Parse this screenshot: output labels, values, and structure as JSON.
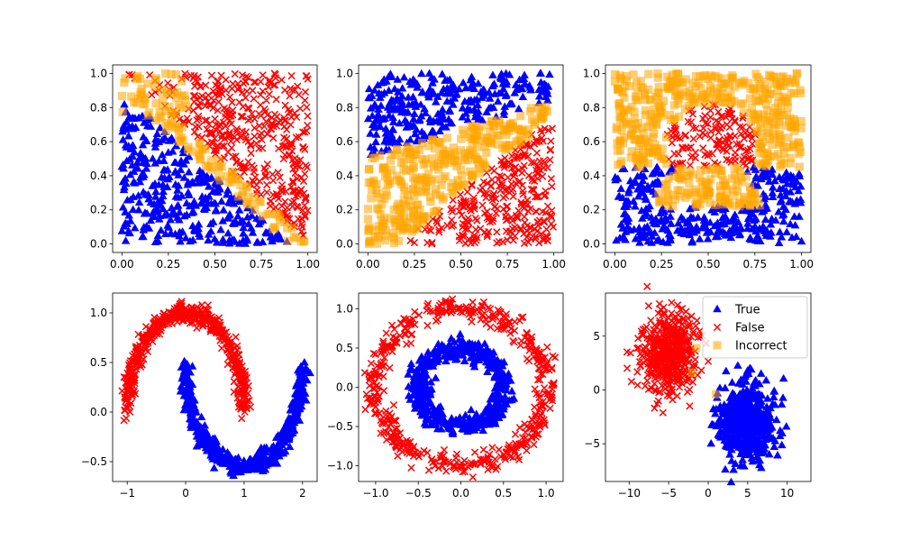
{
  "colors": {
    "true": "#0000ff",
    "false": "#ff0000",
    "incorrect": "#ffa500"
  },
  "legend": {
    "panel": 5,
    "placement": "upper-right",
    "entries": [
      {
        "label": "True",
        "marker": "triangle",
        "color": "#0000ff"
      },
      {
        "label": "False",
        "marker": "x",
        "color": "#ff0000"
      },
      {
        "label": "Incorrect",
        "marker": "square",
        "color": "#ffa500"
      }
    ]
  },
  "chart_data": [
    {
      "type": "scatter",
      "dataset": "diagonal split",
      "xlim": [
        -0.05,
        1.05
      ],
      "ylim": [
        -0.05,
        1.05
      ],
      "xticks": [
        0.0,
        0.25,
        0.5,
        0.75,
        1.0
      ],
      "xtick_labels": [
        "0.00",
        "0.25",
        "0.50",
        "0.75",
        "1.00"
      ],
      "yticks": [
        0.0,
        0.2,
        0.4,
        0.6,
        0.8,
        1.0
      ],
      "ytick_labels": [
        "0.0",
        "0.2",
        "0.4",
        "0.6",
        "0.8",
        "1.0"
      ],
      "series": [
        {
          "name": "True",
          "region": "x + y < 0.95, x in [0,1], y in [0,1]",
          "approx_count": 400
        },
        {
          "name": "False",
          "region": "x + y > 1.0, x in [0,1], y in [0,1]",
          "approx_count": 450
        },
        {
          "name": "Incorrect",
          "region": "band along x + y ≈ 0.9–1.0 plus corner near (0.05–0.35, 0.75–1.0)",
          "approx_count": 70
        }
      ]
    },
    {
      "type": "scatter",
      "dataset": "three bands",
      "xlim": [
        -0.05,
        1.05
      ],
      "ylim": [
        -0.05,
        1.05
      ],
      "xticks": [
        0.0,
        0.25,
        0.5,
        0.75,
        1.0
      ],
      "xtick_labels": [
        "0.00",
        "0.25",
        "0.50",
        "0.75",
        "1.00"
      ],
      "yticks": [
        0.0,
        0.2,
        0.4,
        0.6,
        0.8,
        1.0
      ],
      "ytick_labels": [
        "0.0",
        "0.2",
        "0.4",
        "0.6",
        "0.8",
        "1.0"
      ],
      "series": [
        {
          "name": "True",
          "region": "upper band y > 0.5 + 0.35x (approx), top strip",
          "approx_count": 330
        },
        {
          "name": "False",
          "region": "lower-right wedge below y = 0.9x - 0.15",
          "approx_count": 330
        },
        {
          "name": "Incorrect",
          "region": "middle wedge between the two boundaries",
          "approx_count": 300
        }
      ]
    },
    {
      "type": "scatter",
      "dataset": "circle and crescent",
      "xlim": [
        -0.05,
        1.05
      ],
      "ylim": [
        -0.05,
        1.05
      ],
      "xticks": [
        0.0,
        0.25,
        0.5,
        0.75,
        1.0
      ],
      "xtick_labels": [
        "0.00",
        "0.25",
        "0.50",
        "0.75",
        "1.00"
      ],
      "yticks": [
        0.0,
        0.2,
        0.4,
        0.6,
        0.8,
        1.0
      ],
      "ytick_labels": [
        "0.0",
        "0.2",
        "0.4",
        "0.6",
        "0.8",
        "1.0"
      ],
      "series": [
        {
          "name": "True",
          "region": "bottom band y < 0.45 excluding crescent",
          "approx_count": 420
        },
        {
          "name": "False",
          "region": "circle centered (0.52, 0.57) radius ~0.25",
          "approx_count": 140
        },
        {
          "name": "Incorrect",
          "region": "top region y > 0.45 outside circle, plus crescent around (0.5, 0.35)",
          "approx_count": 450
        }
      ]
    },
    {
      "type": "scatter",
      "dataset": "two moons",
      "xlim": [
        -1.25,
        2.25
      ],
      "ylim": [
        -0.7,
        1.2
      ],
      "xticks": [
        -1,
        0,
        1,
        2
      ],
      "xtick_labels": [
        "−1",
        "0",
        "1",
        "2"
      ],
      "yticks": [
        -0.5,
        0.0,
        0.5,
        1.0
      ],
      "ytick_labels": [
        "−0.5",
        "0.0",
        "0.5",
        "1.0"
      ],
      "series": [
        {
          "name": "True",
          "shape": "lower moon: x = 1 - cos(t), y = 0.5 - sin(t), t in [0, pi]",
          "approx_count": 500
        },
        {
          "name": "False",
          "shape": "upper moon: x = cos(t), y = sin(t), t in [0, pi]",
          "approx_count": 500
        }
      ]
    },
    {
      "type": "scatter",
      "dataset": "concentric circles",
      "xlim": [
        -1.2,
        1.2
      ],
      "ylim": [
        -1.2,
        1.2
      ],
      "xticks": [
        -1.0,
        -0.5,
        0.0,
        0.5,
        1.0
      ],
      "xtick_labels": [
        "−1.0",
        "−0.5",
        "0.0",
        "0.5",
        "1.0"
      ],
      "yticks": [
        -1.0,
        -0.5,
        0.0,
        0.5,
        1.0
      ],
      "ytick_labels": [
        "−1.0",
        "−0.5",
        "0.0",
        "0.5",
        "1.0"
      ],
      "series": [
        {
          "name": "True",
          "shape": "inner ring radius ~0.5",
          "approx_count": 500
        },
        {
          "name": "False",
          "shape": "outer ring radius ~1.0",
          "approx_count": 500
        }
      ]
    },
    {
      "type": "scatter",
      "dataset": "two blobs",
      "xlim": [
        -13,
        13
      ],
      "ylim": [
        -8.5,
        9
      ],
      "xticks": [
        -10,
        -5,
        0,
        5,
        10
      ],
      "xtick_labels": [
        "−10",
        "−5",
        "0",
        "5",
        "10"
      ],
      "yticks": [
        -5,
        0,
        5
      ],
      "ytick_labels": [
        "−5",
        "0",
        "5"
      ],
      "series": [
        {
          "name": "True",
          "shape": "gaussian blob centered (5, -3), std ~1.8",
          "approx_count": 500
        },
        {
          "name": "False",
          "shape": "gaussian blob centered (-5, 3.5), std ~1.8",
          "approx_count": 500
        },
        {
          "name": "Incorrect",
          "points": [
            [
              -2.0,
              1.6
            ],
            [
              1.0,
              -0.4
            ],
            [
              -1.5,
              3.9
            ]
          ],
          "approx_count": 3
        }
      ]
    }
  ]
}
